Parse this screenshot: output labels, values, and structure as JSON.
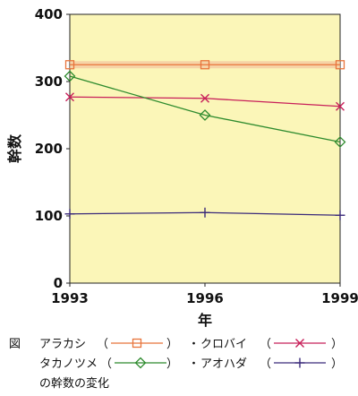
{
  "chart_data": {
    "type": "line",
    "x": [
      1993,
      1996,
      1999
    ],
    "xlim": [
      1993,
      1999
    ],
    "ylim": [
      0,
      400
    ],
    "yticks": [
      0,
      100,
      200,
      300,
      400
    ],
    "xlabel": "年",
    "ylabel": "幹数",
    "grid": false,
    "plot_background": "#fbf6b8",
    "series": [
      {
        "name": "アラカシ",
        "values": [
          325,
          325,
          325
        ],
        "color": "#e8743b",
        "marker": "square",
        "band": true
      },
      {
        "name": "クロバイ",
        "values": [
          277,
          275,
          263
        ],
        "color": "#c8205a",
        "marker": "x"
      },
      {
        "name": "タカノツメ",
        "values": [
          308,
          250,
          210
        ],
        "color": "#2e8b2e",
        "marker": "diamond"
      },
      {
        "name": "アオハダ",
        "values": [
          103,
          105,
          101
        ],
        "color": "#3a2a7a",
        "marker": "plus"
      }
    ]
  },
  "legend": {
    "prefix": "図",
    "open_paren": "（",
    "close_paren": "）",
    "bullet": "・",
    "caption": "の幹数の変化"
  }
}
